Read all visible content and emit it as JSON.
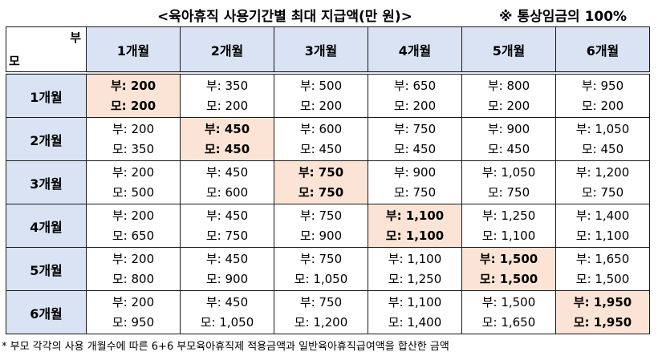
{
  "title": "<육아휴직 사용기간별 최대 지급액(만 원)>",
  "note_top": "※ 통상임금의 100%",
  "corner": {
    "top_right": "부",
    "bottom_left": "모"
  },
  "columns": [
    "1개월",
    "2개월",
    "3개월",
    "4개월",
    "5개월",
    "6개월"
  ],
  "rows": [
    {
      "label": "1개월",
      "cells": [
        {
          "bu": "부: 200",
          "mo": "모: 200",
          "highlight": true
        },
        {
          "bu": "부: 350",
          "mo": "모: 200"
        },
        {
          "bu": "부: 500",
          "mo": "모: 200"
        },
        {
          "bu": "부: 650",
          "mo": "모: 200"
        },
        {
          "bu": "부: 800",
          "mo": "모: 200"
        },
        {
          "bu": "부: 950",
          "mo": "모: 200"
        }
      ]
    },
    {
      "label": "2개월",
      "cells": [
        {
          "bu": "부: 200",
          "mo": "모: 350"
        },
        {
          "bu": "부: 450",
          "mo": "모: 450",
          "highlight": true
        },
        {
          "bu": "부: 600",
          "mo": "모: 450"
        },
        {
          "bu": "부: 750",
          "mo": "모: 450"
        },
        {
          "bu": "부: 900",
          "mo": "모: 450"
        },
        {
          "bu": "부: 1,050",
          "mo": "모: 450"
        }
      ]
    },
    {
      "label": "3개월",
      "cells": [
        {
          "bu": "부: 200",
          "mo": "모: 500"
        },
        {
          "bu": "부: 450",
          "mo": "모: 600"
        },
        {
          "bu": "부: 750",
          "mo": "모: 750",
          "highlight": true
        },
        {
          "bu": "부: 900",
          "mo": "모: 750"
        },
        {
          "bu": "부: 1,050",
          "mo": "모: 750"
        },
        {
          "bu": "부: 1,200",
          "mo": "모: 750"
        }
      ]
    },
    {
      "label": "4개월",
      "cells": [
        {
          "bu": "부: 200",
          "mo": "모: 650"
        },
        {
          "bu": "부: 450",
          "mo": "모: 750"
        },
        {
          "bu": "부: 750",
          "mo": "모: 900"
        },
        {
          "bu": "부: 1,100",
          "mo": "모: 1,100",
          "highlight": true
        },
        {
          "bu": "부: 1,250",
          "mo": "모: 1,100"
        },
        {
          "bu": "부: 1,400",
          "mo": "모: 1,100"
        }
      ]
    },
    {
      "label": "5개월",
      "cells": [
        {
          "bu": "부: 200",
          "mo": "모: 800"
        },
        {
          "bu": "부: 450",
          "mo": "모: 900"
        },
        {
          "bu": "부: 750",
          "mo": "모: 1,050"
        },
        {
          "bu": "부: 1,100",
          "mo": "모: 1,250"
        },
        {
          "bu": "부: 1,500",
          "mo": "모: 1,500",
          "highlight": true
        },
        {
          "bu": "부: 1,650",
          "mo": "모: 1,500"
        }
      ]
    },
    {
      "label": "6개월",
      "cells": [
        {
          "bu": "부: 200",
          "mo": "모: 950"
        },
        {
          "bu": "부: 450",
          "mo": "모: 1,050"
        },
        {
          "bu": "부: 750",
          "mo": "모: 1,200"
        },
        {
          "bu": "부: 1,100",
          "mo": "모: 1,400"
        },
        {
          "bu": "부: 1,500",
          "mo": "모: 1,650"
        },
        {
          "bu": "부: 1,950",
          "mo": "모: 1,950",
          "highlight": true
        }
      ]
    }
  ],
  "footnote": "* 부모 각각의 사용 개월수에 따른 6+6 부모육아휴직제 적용금액과 일반육아휴직급여액을 합산한 금액",
  "colors": {
    "header_bg": "#dae3f3",
    "highlight_bg": "#fbe4d5",
    "border": "#1a1a1a"
  }
}
